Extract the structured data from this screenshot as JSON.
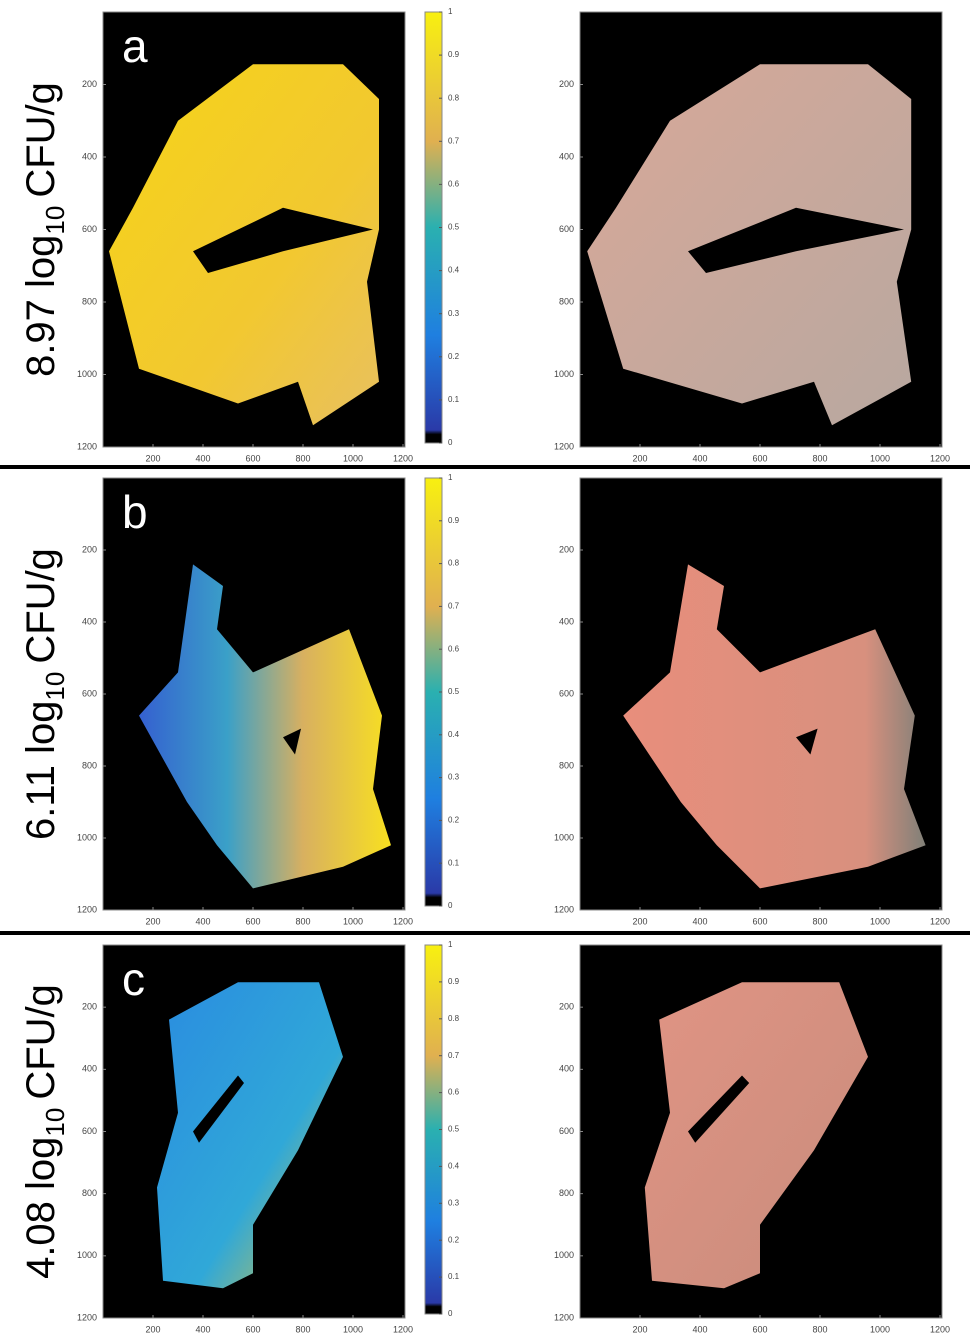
{
  "panels": [
    {
      "letter": "a",
      "label": {
        "value": "8.97 log",
        "subscript": "10",
        "unit": "CFU/g"
      }
    },
    {
      "letter": "b",
      "label": {
        "value": "6.11 log",
        "subscript": "10",
        "unit": "CFU/g"
      }
    },
    {
      "letter": "c",
      "label": {
        "value": "4.08 log",
        "subscript": "10",
        "unit": "CFU/g"
      }
    }
  ],
  "axes": {
    "xlim": [
      0,
      1200
    ],
    "ylim": [
      0,
      1200
    ],
    "xticks": [
      200,
      400,
      600,
      800,
      1000,
      1200
    ],
    "yticks": [
      200,
      400,
      600,
      800,
      1000,
      1200
    ]
  },
  "colorbar": {
    "lim": [
      0,
      1
    ],
    "ticks": [
      0,
      0.1,
      0.2,
      0.3,
      0.4,
      0.5,
      0.6,
      0.7,
      0.8,
      0.9,
      1
    ]
  }
}
